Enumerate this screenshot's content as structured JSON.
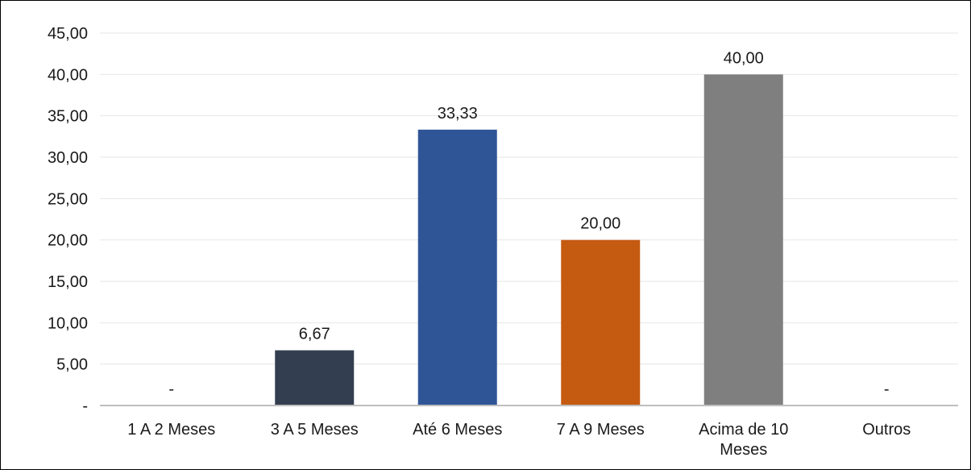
{
  "chart_data": {
    "type": "bar",
    "title": "",
    "xlabel": "",
    "ylabel": "",
    "ylim": [
      0,
      45
    ],
    "y_tick_step": 5,
    "y_tick_labels": [
      "-",
      "5,00",
      "10,00",
      "15,00",
      "20,00",
      "25,00",
      "30,00",
      "35,00",
      "40,00",
      "45,00"
    ],
    "grid": true,
    "legend": "none",
    "categories": [
      [
        "1 A 2 Meses"
      ],
      [
        "3 A 5 Meses"
      ],
      [
        "Até 6 Meses"
      ],
      [
        "7 A 9 Meses"
      ],
      [
        "Acima de 10",
        "Meses"
      ],
      [
        "Outros"
      ]
    ],
    "values": [
      0,
      6.67,
      33.33,
      20.0,
      40.0,
      0
    ],
    "value_labels": [
      "-",
      "6,67",
      "33,33",
      "20,00",
      "40,00",
      "-"
    ],
    "colors": [
      "#2e4a86",
      "#333f50",
      "#2f5597",
      "#c55a11",
      "#7f7f7f",
      "#2e4a86"
    ],
    "grid_color": "#e6e6e6",
    "axis_color": "#bfbfbf"
  }
}
